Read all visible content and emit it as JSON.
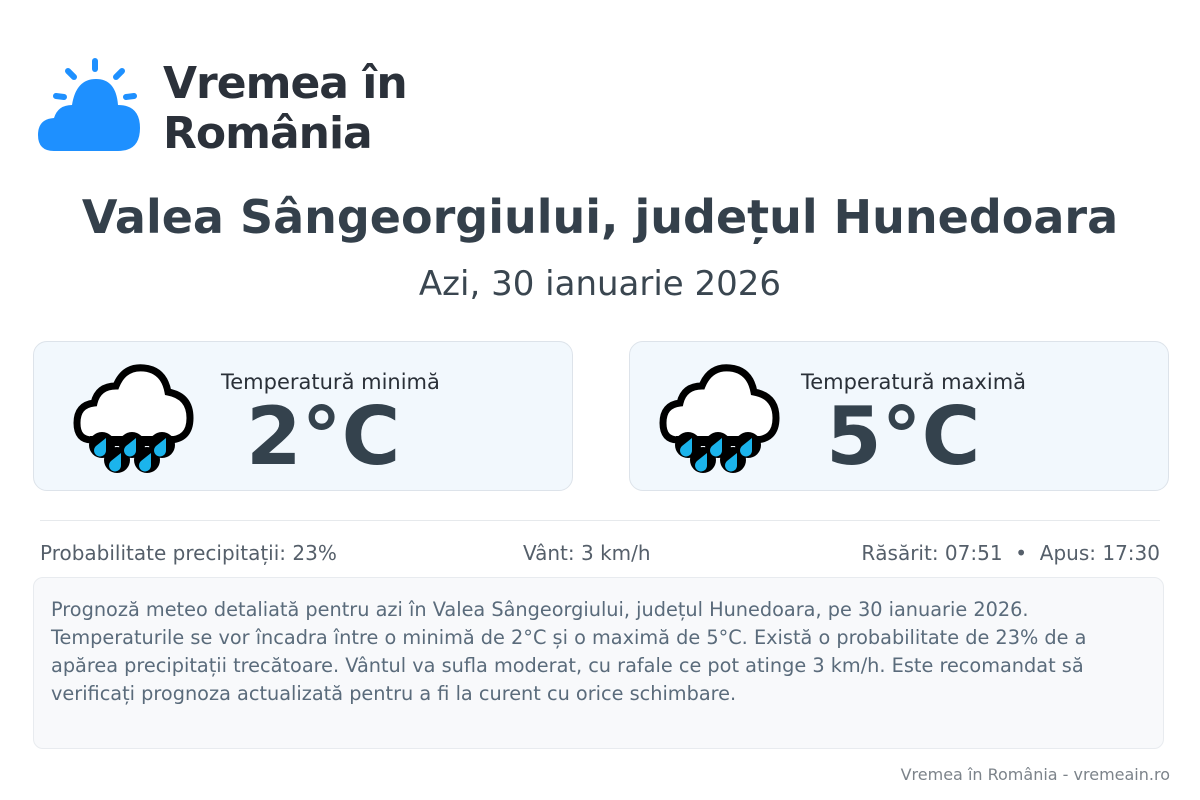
{
  "brand": {
    "name": "Vremea în România",
    "line1": "Vremea în",
    "line2": "România",
    "logo_icon": "sun-cloud-icon",
    "color": "#1e90ff"
  },
  "location_title": "Valea Sângeorgiului, județul Hunedoara",
  "date": "Azi, 30 ianuarie 2026",
  "cards": [
    {
      "label": "Temperatură minimă",
      "value": "2°C",
      "icon": "rain-cloud-icon"
    },
    {
      "label": "Temperatură maximă",
      "value": "5°C",
      "icon": "rain-cloud-icon"
    }
  ],
  "info": {
    "precip": "Probabilitate precipitații: 23%",
    "wind": "Vânt: 3 km/h",
    "sun": "Răsărit: 07:51  •  Apus: 17:30"
  },
  "description": "Prognoză meteo detaliată pentru azi în Valea Sângeorgiului, județul Hunedoara, pe 30 ianuarie 2026. Temperaturile se vor încadra între o minimă de 2°C și o maximă de 5°C. Există o probabilitate de 23% de a apărea precipitații trecătoare. Vântul va sufla moderat, cu rafale ce pot atinge 3 km/h. Este recomandat să verificați prognoza actualizată pentru a fi la curent cu orice schimbare.",
  "footer": "Vremea în România - vremeain.ro"
}
